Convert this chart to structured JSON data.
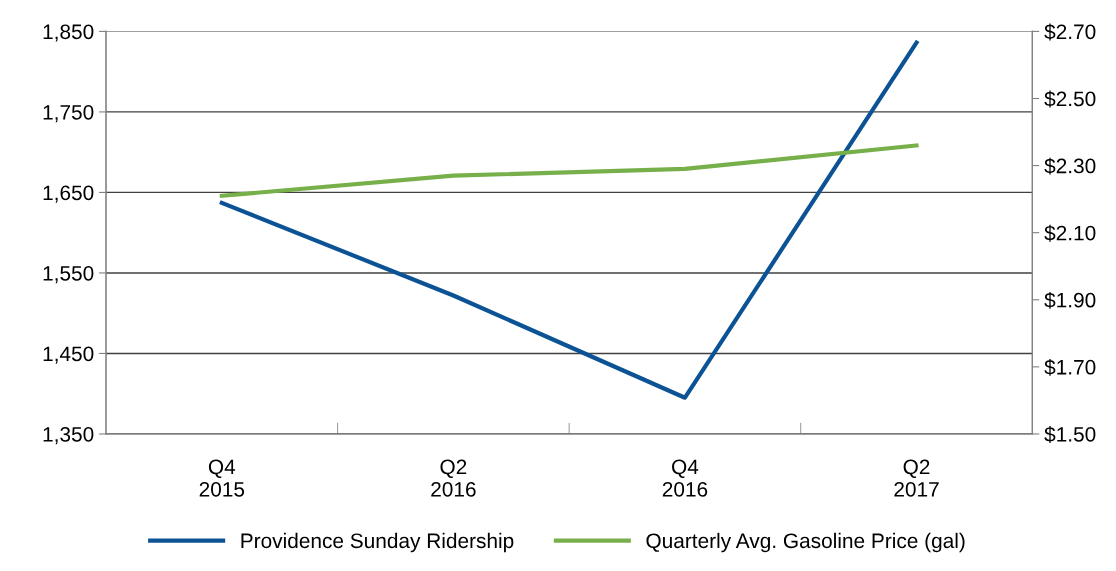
{
  "chart_data": {
    "type": "line",
    "categories": [
      "Q4\n2015",
      "Q2\n2016",
      "Q4\n2016",
      "Q2\n2017"
    ],
    "series": [
      {
        "name": "Providence Sunday Ridership",
        "color": "#0b5394",
        "values": [
          1637,
          1522,
          1395,
          1836
        ]
      },
      {
        "name": "Quarterly Avg. Gasoline Price (gal)",
        "color": "#77b04a",
        "values": [
          2.21,
          2.27,
          2.29,
          2.36
        ],
        "axis": "y2"
      }
    ],
    "ylim": [
      1350,
      1850
    ],
    "yticks": [
      {
        "value": 1350,
        "label": "1,350"
      },
      {
        "value": 1450,
        "label": "1,450"
      },
      {
        "value": 1550,
        "label": "1,550"
      },
      {
        "value": 1650,
        "label": "1,650"
      },
      {
        "value": 1750,
        "label": "1,750"
      },
      {
        "value": 1850,
        "label": "1,850"
      }
    ],
    "y2lim": [
      1.5,
      2.7
    ],
    "y2ticks": [
      {
        "value": 1.5,
        "label": "$1.50"
      },
      {
        "value": 1.7,
        "label": "$1.70"
      },
      {
        "value": 1.9,
        "label": "$1.90"
      },
      {
        "value": 2.1,
        "label": "$2.10"
      },
      {
        "value": 2.3,
        "label": "$2.30"
      },
      {
        "value": 2.5,
        "label": "$2.50"
      },
      {
        "value": 2.7,
        "label": "$2.70"
      }
    ],
    "grid": "y",
    "legend": "bottom",
    "marker": "none",
    "line_style": "solid"
  }
}
